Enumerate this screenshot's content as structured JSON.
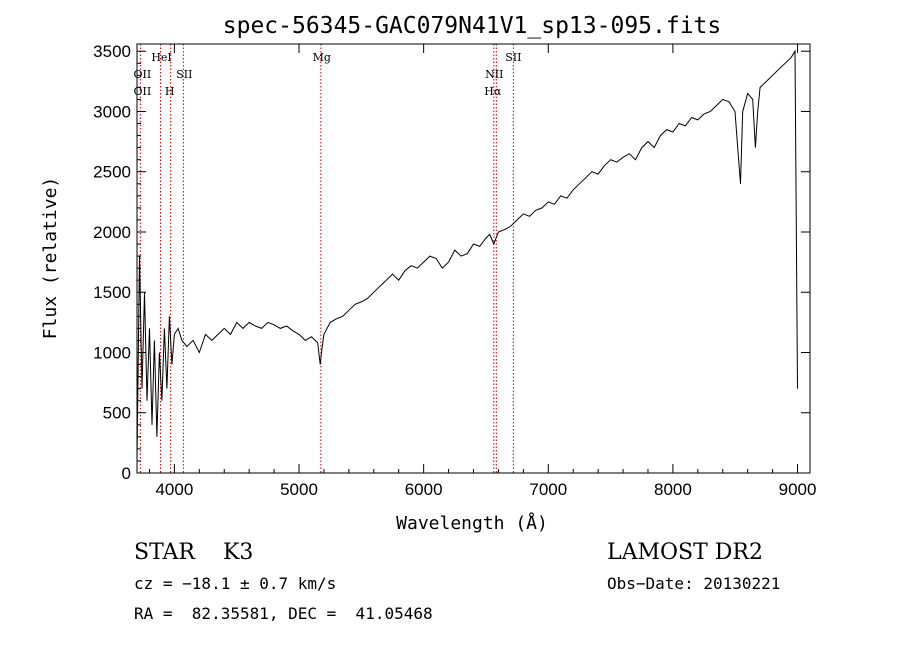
{
  "chart_data": {
    "type": "line",
    "title": "spec-56345-GAC079N41V1_sp13-095.fits",
    "xlabel": "Wavelength (Å)",
    "ylabel": "Flux (relative)",
    "xlim": [
      3700,
      9100
    ],
    "ylim": [
      0,
      3560
    ],
    "x_ticks": [
      4000,
      5000,
      6000,
      7000,
      8000,
      9000
    ],
    "y_ticks": [
      0,
      500,
      1000,
      1500,
      2000,
      2500,
      3000,
      3500
    ],
    "line_color": "#000000",
    "marker_color": "#cc0000",
    "series": [
      {
        "x": [
          3700,
          3720,
          3740,
          3760,
          3780,
          3800,
          3820,
          3840,
          3860,
          3880,
          3900,
          3920,
          3940,
          3960,
          3980,
          4000,
          4030,
          4060,
          4100,
          4150,
          4200,
          4250,
          4300,
          4350,
          4400,
          4450,
          4500,
          4550,
          4600,
          4650,
          4700,
          4750,
          4800,
          4850,
          4900,
          4950,
          5000,
          5050,
          5100,
          5150,
          5170,
          5183,
          5200,
          5250,
          5300,
          5350,
          5400,
          5450,
          5500,
          5550,
          5600,
          5650,
          5700,
          5750,
          5800,
          5850,
          5900,
          5950,
          6000,
          6050,
          6100,
          6150,
          6200,
          6250,
          6300,
          6350,
          6400,
          6450,
          6500,
          6530,
          6563,
          6600,
          6650,
          6700,
          6750,
          6800,
          6850,
          6900,
          6950,
          7000,
          7050,
          7100,
          7150,
          7200,
          7250,
          7300,
          7350,
          7400,
          7450,
          7500,
          7550,
          7600,
          7650,
          7700,
          7750,
          7800,
          7850,
          7900,
          7950,
          8000,
          8050,
          8100,
          8150,
          8200,
          8250,
          8300,
          8350,
          8400,
          8450,
          8498,
          8520,
          8542,
          8560,
          8600,
          8640,
          8662,
          8680,
          8700,
          8750,
          8800,
          8850,
          8900,
          8950,
          8980,
          9000
        ],
        "y": [
          100,
          1800,
          700,
          1500,
          600,
          1200,
          400,
          1100,
          300,
          1000,
          600,
          1200,
          700,
          1300,
          900,
          1150,
          1200,
          1100,
          1050,
          1100,
          1000,
          1150,
          1100,
          1150,
          1200,
          1150,
          1250,
          1200,
          1250,
          1220,
          1200,
          1250,
          1230,
          1200,
          1220,
          1180,
          1150,
          1100,
          1130,
          1080,
          900,
          1020,
          1150,
          1250,
          1280,
          1300,
          1350,
          1400,
          1420,
          1450,
          1500,
          1550,
          1600,
          1650,
          1600,
          1680,
          1720,
          1700,
          1750,
          1800,
          1780,
          1700,
          1750,
          1850,
          1800,
          1820,
          1900,
          1880,
          1950,
          1980,
          1900,
          2000,
          2020,
          2050,
          2100,
          2150,
          2130,
          2180,
          2200,
          2250,
          2230,
          2300,
          2280,
          2350,
          2400,
          2450,
          2500,
          2480,
          2550,
          2600,
          2580,
          2620,
          2650,
          2600,
          2700,
          2750,
          2700,
          2800,
          2850,
          2830,
          2900,
          2880,
          2950,
          2930,
          2980,
          3000,
          3050,
          3100,
          3080,
          3000,
          2700,
          2400,
          3000,
          3150,
          3100,
          2700,
          3000,
          3200,
          3250,
          3300,
          3350,
          3400,
          3450,
          3500,
          700
        ]
      }
    ],
    "line_markers": [
      {
        "label": "OII",
        "wavelength": 3727
      },
      {
        "label": "HeI",
        "wavelength": 3889
      },
      {
        "label": "H",
        "wavelength": 3970
      },
      {
        "label": "SII",
        "wavelength": 4072
      },
      {
        "label": "Mg",
        "wavelength": 5175
      },
      {
        "label": "NII",
        "wavelength": 6583
      },
      {
        "label": "Hα",
        "wavelength": 6563
      },
      {
        "label": "SII",
        "wavelength": 6720
      }
    ],
    "grid": false,
    "legend": "none"
  },
  "info": {
    "class_line": "STAR    K3",
    "survey": "LAMOST DR2",
    "redshift": "cz = −18.1 ± 0.7 km/s",
    "obs_date": "Obs−Date: 20130221",
    "coords": "RA =  82.35581, DEC =  41.05468"
  }
}
